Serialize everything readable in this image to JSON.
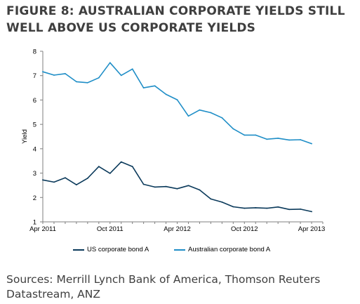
{
  "figure": {
    "title": "FIGURE 8: AUSTRALIAN CORPORATE YIELDS STILL WELL ABOVE US CORPORATE YIELDS",
    "sources": "Sources: Merrill Lynch Bank of America, Thomson Reuters Datastream, ANZ"
  },
  "colors": {
    "us_series": "#0b3a5b",
    "au_series": "#1f8ec7",
    "axis": "#7f7f7f",
    "title": "#3f3f3f"
  },
  "chart_data": {
    "type": "line",
    "ylabel": "Yield",
    "xlabel": "",
    "ylim": [
      1,
      8
    ],
    "yticks": [
      1,
      2,
      3,
      4,
      5,
      6,
      7,
      8
    ],
    "x_range": [
      "2011-04",
      "2013-05"
    ],
    "xticks": [
      {
        "x": "2011-04",
        "label": "Apr 2011"
      },
      {
        "x": "2011-10",
        "label": "Oct 2011"
      },
      {
        "x": "2012-04",
        "label": "Apr 2012"
      },
      {
        "x": "2012-10",
        "label": "Oct 2012"
      },
      {
        "x": "2013-04",
        "label": "Apr 2013"
      }
    ],
    "grid": false,
    "legend_position": "bottom",
    "x": [
      "2011-04",
      "2011-05",
      "2011-06",
      "2011-07",
      "2011-08",
      "2011-09",
      "2011-10",
      "2011-11",
      "2011-12",
      "2012-01",
      "2012-02",
      "2012-03",
      "2012-04",
      "2012-05",
      "2012-06",
      "2012-07",
      "2012-08",
      "2012-09",
      "2012-10",
      "2012-11",
      "2012-12",
      "2013-01",
      "2013-02",
      "2013-03",
      "2013-04"
    ],
    "series": [
      {
        "name": "US corporate bond A",
        "color": "#0b3a5b",
        "values": [
          2.72,
          2.63,
          2.81,
          2.52,
          2.79,
          3.27,
          2.99,
          3.46,
          3.27,
          2.54,
          2.43,
          2.45,
          2.36,
          2.49,
          2.31,
          1.94,
          1.81,
          1.62,
          1.56,
          1.58,
          1.56,
          1.61,
          1.51,
          1.52,
          1.42
        ]
      },
      {
        "name": "Australian corporate bond A",
        "color": "#1f8ec7",
        "values": [
          7.16,
          7.02,
          7.08,
          6.75,
          6.71,
          6.91,
          7.53,
          7.01,
          7.27,
          6.5,
          6.58,
          6.23,
          6.01,
          5.34,
          5.59,
          5.48,
          5.27,
          4.82,
          4.56,
          4.56,
          4.39,
          4.43,
          4.36,
          4.37,
          4.21
        ]
      }
    ]
  }
}
